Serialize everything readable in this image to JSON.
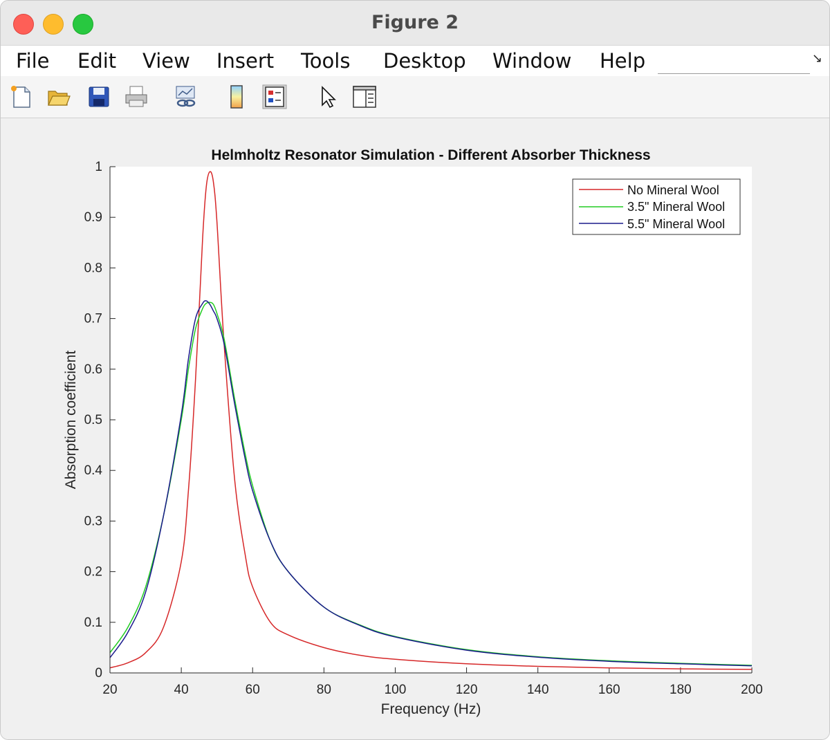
{
  "window": {
    "title": "Figure 2"
  },
  "menu": [
    "File",
    "Edit",
    "View",
    "Insert",
    "Tools",
    "Desktop",
    "Window",
    "Help"
  ],
  "toolbar": {
    "icons": [
      "new-figure-icon",
      "open-folder-icon",
      "save-icon",
      "print-icon",
      "link-plot-icon",
      "colorbar-icon",
      "legend-icon",
      "pointer-arrow-icon",
      "property-inspector-icon"
    ]
  },
  "chart_data": {
    "type": "line",
    "title": "Helmholtz Resonator Simulation - Different Absorber Thickness",
    "xlabel": "Frequency (Hz)",
    "ylabel": "Absorption coefficient",
    "xlim": [
      20,
      200
    ],
    "ylim": [
      0,
      1
    ],
    "xticks": [
      20,
      40,
      60,
      80,
      100,
      120,
      140,
      160,
      180,
      200
    ],
    "yticks": [
      0,
      0.1,
      0.2,
      0.3,
      0.4,
      0.5,
      0.6,
      0.7,
      0.8,
      0.9,
      1
    ],
    "ytick_labels": [
      "0",
      "0.1",
      "0.2",
      "0.3",
      "0.4",
      "0.5",
      "0.6",
      "0.7",
      "0.8",
      "0.9",
      "1"
    ],
    "grid": false,
    "legend_position": "top-right",
    "x": [
      20,
      25,
      30,
      35,
      40,
      42,
      44,
      46,
      47,
      48,
      49,
      50,
      52,
      55,
      58,
      60,
      65,
      70,
      80,
      90,
      100,
      120,
      140,
      160,
      180,
      200
    ],
    "series": [
      {
        "name": "No Mineral Wool",
        "color": "#d62728",
        "values": [
          0.01,
          0.02,
          0.04,
          0.09,
          0.22,
          0.36,
          0.58,
          0.86,
          0.96,
          0.99,
          0.97,
          0.89,
          0.65,
          0.38,
          0.23,
          0.17,
          0.1,
          0.075,
          0.05,
          0.035,
          0.027,
          0.018,
          0.013,
          0.01,
          0.008,
          0.007
        ]
      },
      {
        "name": "3.5\" Mineral Wool",
        "color": "#22cc22",
        "values": [
          0.04,
          0.09,
          0.17,
          0.31,
          0.5,
          0.6,
          0.68,
          0.72,
          0.73,
          0.732,
          0.728,
          0.71,
          0.66,
          0.54,
          0.43,
          0.37,
          0.26,
          0.2,
          0.13,
          0.095,
          0.072,
          0.046,
          0.032,
          0.024,
          0.019,
          0.015
        ]
      },
      {
        "name": "5.5\" Mineral Wool",
        "color": "#1a1a8c",
        "values": [
          0.03,
          0.08,
          0.16,
          0.31,
          0.51,
          0.62,
          0.7,
          0.73,
          0.735,
          0.728,
          0.715,
          0.7,
          0.65,
          0.53,
          0.42,
          0.36,
          0.26,
          0.2,
          0.13,
          0.094,
          0.071,
          0.045,
          0.031,
          0.023,
          0.018,
          0.014
        ]
      }
    ]
  }
}
